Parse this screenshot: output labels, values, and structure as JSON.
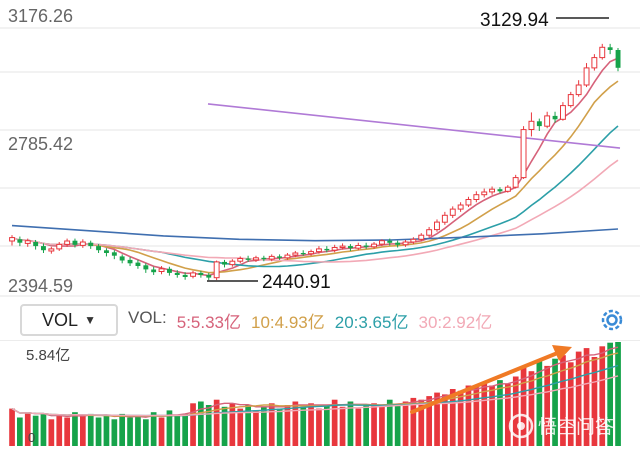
{
  "colors": {
    "up": "#e8373d",
    "down": "#16a34a",
    "ma5": "#d6627a",
    "ma10": "#d1a04a",
    "ma20": "#2c9fa8",
    "ma30": "#f2a9b6",
    "ma_long_blue": "#3f6fb0",
    "ma_long_purple": "#b07ad6",
    "arrow": "#f07a25",
    "grid": "#e6e6e6"
  },
  "price_axis": {
    "top": "3176.26",
    "mid": "2785.42",
    "bottom": "2394.59"
  },
  "annotations": {
    "high": "3129.94",
    "low": "2440.91"
  },
  "vol_panel": {
    "selector_label": "VOL",
    "legend_prefix": "VOL:",
    "ma5": "5:5.33亿",
    "ma10": "10:4.93亿",
    "ma20": "20:3.65亿",
    "ma30": "30:2.92亿",
    "max_label": "5.84亿",
    "zero_label": "0"
  },
  "watermark": "悟空问答",
  "icons": {
    "dropdown": "caret-down-icon",
    "settings": "gear-icon",
    "trend": "trend-arrow-icon"
  },
  "chart_data": {
    "type": "candlestick",
    "ylim": [
      2394.59,
      3176.26
    ],
    "candles": [
      [
        2555,
        2565,
        2542,
        2572
      ],
      [
        2560,
        2550,
        2540,
        2568
      ],
      [
        2548,
        2556,
        2538,
        2562
      ],
      [
        2552,
        2540,
        2530,
        2558
      ],
      [
        2540,
        2528,
        2520,
        2548
      ],
      [
        2526,
        2532,
        2518,
        2538
      ],
      [
        2532,
        2545,
        2526,
        2552
      ],
      [
        2545,
        2555,
        2538,
        2562
      ],
      [
        2556,
        2544,
        2536,
        2562
      ],
      [
        2542,
        2552,
        2535,
        2560
      ],
      [
        2550,
        2540,
        2532,
        2556
      ],
      [
        2540,
        2528,
        2520,
        2546
      ],
      [
        2528,
        2520,
        2510,
        2534
      ],
      [
        2522,
        2512,
        2502,
        2528
      ],
      [
        2510,
        2498,
        2490,
        2516
      ],
      [
        2500,
        2490,
        2482,
        2508
      ],
      [
        2492,
        2482,
        2474,
        2500
      ],
      [
        2484,
        2472,
        2462,
        2490
      ],
      [
        2472,
        2464,
        2456,
        2480
      ],
      [
        2466,
        2474,
        2458,
        2482
      ],
      [
        2474,
        2462,
        2454,
        2480
      ],
      [
        2462,
        2456,
        2448,
        2470
      ],
      [
        2456,
        2450,
        2442,
        2464
      ],
      [
        2452,
        2462,
        2446,
        2468
      ],
      [
        2462,
        2456,
        2448,
        2468
      ],
      [
        2456,
        2448,
        2441,
        2462
      ],
      [
        2448,
        2494,
        2441,
        2498
      ],
      [
        2494,
        2486,
        2478,
        2500
      ],
      [
        2486,
        2496,
        2480,
        2502
      ],
      [
        2496,
        2504,
        2490,
        2510
      ],
      [
        2504,
        2500,
        2494,
        2512
      ],
      [
        2500,
        2506,
        2494,
        2512
      ],
      [
        2506,
        2502,
        2496,
        2512
      ],
      [
        2502,
        2510,
        2496,
        2516
      ],
      [
        2510,
        2506,
        2500,
        2516
      ],
      [
        2506,
        2514,
        2500,
        2520
      ],
      [
        2514,
        2520,
        2508,
        2526
      ],
      [
        2520,
        2518,
        2512,
        2528
      ],
      [
        2518,
        2524,
        2512,
        2530
      ],
      [
        2524,
        2532,
        2518,
        2540
      ],
      [
        2532,
        2528,
        2522,
        2540
      ],
      [
        2528,
        2536,
        2522,
        2544
      ],
      [
        2536,
        2540,
        2530,
        2548
      ],
      [
        2540,
        2534,
        2526,
        2546
      ],
      [
        2534,
        2542,
        2528,
        2550
      ],
      [
        2542,
        2538,
        2532,
        2550
      ],
      [
        2538,
        2546,
        2532,
        2552
      ],
      [
        2546,
        2556,
        2540,
        2560
      ],
      [
        2556,
        2550,
        2542,
        2562
      ],
      [
        2550,
        2544,
        2536,
        2556
      ],
      [
        2544,
        2552,
        2538,
        2558
      ],
      [
        2552,
        2560,
        2546,
        2566
      ],
      [
        2560,
        2572,
        2554,
        2578
      ],
      [
        2572,
        2588,
        2566,
        2596
      ],
      [
        2588,
        2610,
        2582,
        2618
      ],
      [
        2610,
        2630,
        2602,
        2640
      ],
      [
        2630,
        2648,
        2622,
        2656
      ],
      [
        2648,
        2660,
        2640,
        2668
      ],
      [
        2660,
        2676,
        2654,
        2684
      ],
      [
        2676,
        2690,
        2668,
        2700
      ],
      [
        2690,
        2698,
        2682,
        2708
      ],
      [
        2698,
        2706,
        2690,
        2714
      ],
      [
        2706,
        2700,
        2694,
        2712
      ],
      [
        2700,
        2712,
        2696,
        2718
      ],
      [
        2712,
        2740,
        2708,
        2748
      ],
      [
        2740,
        2880,
        2736,
        2890
      ],
      [
        2880,
        2904,
        2860,
        2930
      ],
      [
        2904,
        2890,
        2876,
        2912
      ],
      [
        2890,
        2920,
        2884,
        2932
      ],
      [
        2920,
        2910,
        2900,
        2932
      ],
      [
        2910,
        2950,
        2906,
        2960
      ],
      [
        2950,
        2982,
        2944,
        2990
      ],
      [
        2982,
        3010,
        2976,
        3024
      ],
      [
        3010,
        3060,
        3004,
        3074
      ],
      [
        3060,
        3090,
        3052,
        3100
      ],
      [
        3090,
        3120,
        3084,
        3130
      ],
      [
        3120,
        3112,
        3100,
        3130
      ],
      [
        3112,
        3060,
        3050,
        3118
      ]
    ],
    "volumes": [
      2.1,
      1.6,
      1.9,
      1.7,
      1.8,
      1.5,
      1.7,
      1.6,
      1.9,
      1.7,
      1.8,
      1.6,
      1.7,
      1.5,
      1.8,
      1.6,
      1.7,
      1.5,
      1.9,
      1.6,
      2.0,
      1.7,
      1.8,
      2.4,
      2.5,
      2.3,
      2.6,
      2.2,
      2.4,
      2.1,
      2.3,
      2.0,
      2.2,
      2.4,
      2.1,
      2.3,
      2.5,
      2.2,
      2.4,
      2.1,
      2.3,
      2.6,
      2.2,
      2.5,
      2.1,
      2.3,
      2.4,
      2.2,
      2.6,
      2.3,
      2.5,
      2.7,
      2.6,
      2.8,
      3.0,
      2.9,
      3.2,
      3.1,
      3.4,
      3.3,
      3.6,
      3.4,
      3.7,
      3.5,
      3.9,
      4.4,
      4.2,
      4.8,
      4.5,
      4.9,
      5.1,
      4.7,
      5.3,
      5.5,
      5.0,
      5.6,
      5.8,
      5.84
    ]
  }
}
